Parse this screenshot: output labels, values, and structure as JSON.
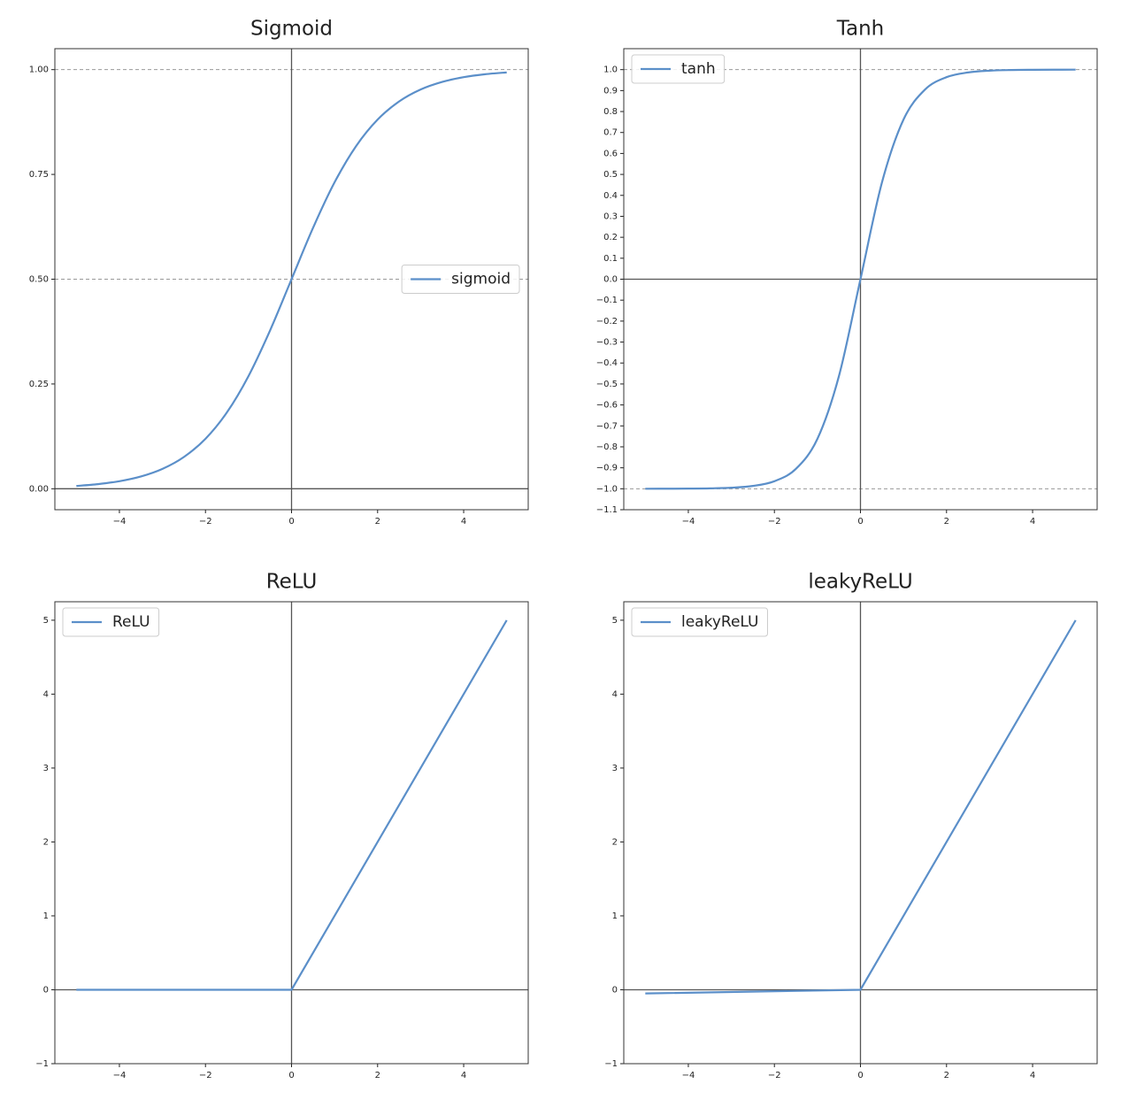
{
  "chart_data": [
    {
      "type": "line",
      "title": "Sigmoid",
      "x": [
        -5,
        -4.5,
        -4,
        -3.5,
        -3,
        -2.5,
        -2,
        -1.5,
        -1,
        -0.5,
        0,
        0.5,
        1,
        1.5,
        2,
        2.5,
        3,
        3.5,
        4,
        4.5,
        5
      ],
      "series": [
        {
          "name": "sigmoid",
          "color": "#5b8fc9",
          "values": [
            0.0067,
            0.011,
            0.018,
            0.0293,
            0.0474,
            0.0759,
            0.1192,
            0.1824,
            0.2689,
            0.3775,
            0.5,
            0.6225,
            0.7311,
            0.8176,
            0.8808,
            0.9241,
            0.9526,
            0.9707,
            0.982,
            0.989,
            0.9933
          ]
        }
      ],
      "smooth": true,
      "legend": "center right",
      "xlim": [
        -5.5,
        5.5
      ],
      "xticks": [
        {
          "value": -4,
          "label": "−4"
        },
        {
          "value": -2,
          "label": "−2"
        },
        0,
        2,
        4
      ],
      "ylim": [
        -0.05,
        1.05
      ],
      "yticks": [
        {
          "value": 0,
          "label": "0.00"
        },
        {
          "value": 0.25,
          "label": "0.25"
        },
        {
          "value": 0.5,
          "label": "0.50"
        },
        {
          "value": 0.75,
          "label": "0.75"
        },
        {
          "value": 1,
          "label": "1.00"
        }
      ],
      "hlines": [
        {
          "y": 0,
          "style": "solid"
        },
        {
          "y": 0.5,
          "style": "dashed"
        },
        {
          "y": 1,
          "style": "dashed"
        }
      ],
      "vlines": [
        {
          "x": 0,
          "style": "solid"
        }
      ]
    },
    {
      "type": "line",
      "title": "Tanh",
      "x": [
        -5,
        -4.5,
        -4,
        -3.5,
        -3,
        -2.5,
        -2,
        -1.5,
        -1,
        -0.5,
        0,
        0.5,
        1,
        1.5,
        2,
        2.5,
        3,
        3.5,
        4,
        4.5,
        5
      ],
      "series": [
        {
          "name": "tanh",
          "color": "#5b8fc9",
          "values": [
            -0.9999,
            -0.9998,
            -0.9993,
            -0.9982,
            -0.9951,
            -0.9866,
            -0.964,
            -0.9051,
            -0.7616,
            -0.4621,
            0,
            0.4621,
            0.7616,
            0.9051,
            0.964,
            0.9866,
            0.9951,
            0.9982,
            0.9993,
            0.9998,
            0.9999
          ]
        }
      ],
      "smooth": true,
      "legend": "upper left",
      "xlim": [
        -5.5,
        5.5
      ],
      "xticks": [
        {
          "value": -4,
          "label": "−4"
        },
        {
          "value": -2,
          "label": "−2"
        },
        0,
        2,
        4
      ],
      "ylim": [
        -1.1,
        1.1
      ],
      "yticks": [
        {
          "value": -1.1,
          "label": "−1.1"
        },
        {
          "value": -1,
          "label": "−1.0"
        },
        {
          "value": -0.9,
          "label": "−0.9"
        },
        {
          "value": -0.8,
          "label": "−0.8"
        },
        {
          "value": -0.7,
          "label": "−0.7"
        },
        {
          "value": -0.6,
          "label": "−0.6"
        },
        {
          "value": -0.5,
          "label": "−0.5"
        },
        {
          "value": -0.4,
          "label": "−0.4"
        },
        {
          "value": -0.3,
          "label": "−0.3"
        },
        {
          "value": -0.2,
          "label": "−0.2"
        },
        {
          "value": -0.1,
          "label": "−0.1"
        },
        {
          "value": 0,
          "label": "0.0"
        },
        0.1,
        0.2,
        0.3,
        0.4,
        0.5,
        0.6,
        0.7,
        0.8,
        0.9,
        {
          "value": 1,
          "label": "1.0"
        }
      ],
      "hlines": [
        {
          "y": 0,
          "style": "solid"
        },
        {
          "y": 1,
          "style": "dashed"
        },
        {
          "y": -1,
          "style": "dashed"
        }
      ],
      "vlines": [
        {
          "x": 0,
          "style": "solid"
        }
      ]
    },
    {
      "type": "line",
      "title": "ReLU",
      "x": [
        -5,
        0,
        5
      ],
      "series": [
        {
          "name": "ReLU",
          "color": "#5b8fc9",
          "values": [
            0,
            0,
            5
          ]
        }
      ],
      "smooth": false,
      "legend": "upper left",
      "xlim": [
        -5.5,
        5.5
      ],
      "xticks": [
        {
          "value": -4,
          "label": "−4"
        },
        {
          "value": -2,
          "label": "−2"
        },
        0,
        2,
        4
      ],
      "ylim": [
        -1,
        5.25
      ],
      "yticks": [
        {
          "value": -1,
          "label": "−1"
        },
        0,
        1,
        2,
        3,
        4,
        5
      ],
      "hlines": [
        {
          "y": 0,
          "style": "solid"
        }
      ],
      "vlines": [
        {
          "x": 0,
          "style": "solid"
        }
      ]
    },
    {
      "type": "line",
      "title": "leakyReLU",
      "x": [
        -5,
        0,
        5
      ],
      "series": [
        {
          "name": "leakyReLU",
          "color": "#5b8fc9",
          "values": [
            -0.05,
            0,
            5
          ]
        }
      ],
      "smooth": false,
      "legend": "upper left",
      "xlim": [
        -5.5,
        5.5
      ],
      "xticks": [
        {
          "value": -4,
          "label": "−4"
        },
        {
          "value": -2,
          "label": "−2"
        },
        0,
        2,
        4
      ],
      "ylim": [
        -1,
        5.25
      ],
      "yticks": [
        {
          "value": -1,
          "label": "−1"
        },
        0,
        1,
        2,
        3,
        4,
        5
      ],
      "hlines": [
        {
          "y": 0,
          "style": "solid"
        }
      ],
      "vlines": [
        {
          "x": 0,
          "style": "solid"
        }
      ]
    }
  ]
}
